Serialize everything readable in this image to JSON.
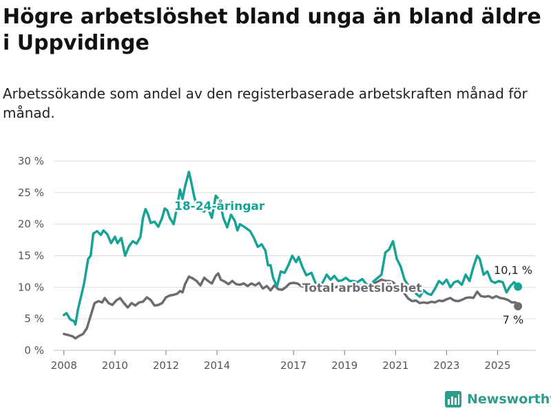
{
  "title": "Högre arbetslöshet bland unga än bland äldre i Uppvidinge",
  "subtitle": "Arbetssökande som andel av den registerbaserade arbetskraften månad för månad.",
  "brand": {
    "name": "Newsworthy"
  },
  "colors": {
    "young": "#16a294",
    "total": "#6e6a72",
    "grid": "#dedede",
    "axis": "#555555"
  },
  "chart_data": {
    "type": "line",
    "x_ticks": [
      "2008",
      "2010",
      "2012",
      "2014",
      "2017",
      "2019",
      "2021",
      "2023",
      "2025"
    ],
    "y_ticks": [
      "0 %",
      "5 %",
      "10 %",
      "15 %",
      "20 %",
      "25 %",
      "30 %"
    ],
    "ylim": [
      0,
      30
    ],
    "xlim": [
      2007.6,
      2026.5
    ],
    "grid": true,
    "series": [
      {
        "name": "18-24-åringar",
        "color": "#16a294",
        "end_label": "10,1 %",
        "points": [
          [
            2008.0,
            5.6
          ],
          [
            2008.1,
            5.9
          ],
          [
            2008.25,
            4.9
          ],
          [
            2008.4,
            4.6
          ],
          [
            2008.45,
            4.1
          ],
          [
            2008.55,
            6.5
          ],
          [
            2008.7,
            9.0
          ],
          [
            2008.8,
            10.8
          ],
          [
            2008.95,
            14.5
          ],
          [
            2009.05,
            15.0
          ],
          [
            2009.15,
            18.5
          ],
          [
            2009.3,
            18.9
          ],
          [
            2009.45,
            18.3
          ],
          [
            2009.55,
            19.0
          ],
          [
            2009.7,
            18.4
          ],
          [
            2009.85,
            17.0
          ],
          [
            2010.0,
            18.0
          ],
          [
            2010.1,
            17.0
          ],
          [
            2010.25,
            17.8
          ],
          [
            2010.4,
            15.0
          ],
          [
            2010.55,
            16.5
          ],
          [
            2010.7,
            17.3
          ],
          [
            2010.85,
            16.9
          ],
          [
            2011.0,
            18.0
          ],
          [
            2011.1,
            21.0
          ],
          [
            2011.2,
            22.4
          ],
          [
            2011.3,
            21.5
          ],
          [
            2011.4,
            20.2
          ],
          [
            2011.55,
            20.4
          ],
          [
            2011.7,
            19.6
          ],
          [
            2011.85,
            21.0
          ],
          [
            2011.95,
            22.5
          ],
          [
            2012.05,
            22.2
          ],
          [
            2012.15,
            21.0
          ],
          [
            2012.3,
            20.0
          ],
          [
            2012.45,
            23.0
          ],
          [
            2012.55,
            25.5
          ],
          [
            2012.65,
            24.0
          ],
          [
            2012.75,
            26.0
          ],
          [
            2012.9,
            28.3
          ],
          [
            2013.0,
            26.5
          ],
          [
            2013.1,
            24.5
          ],
          [
            2013.2,
            23.0
          ],
          [
            2013.35,
            22.2
          ],
          [
            2013.5,
            22.0
          ],
          [
            2013.6,
            23.5
          ],
          [
            2013.7,
            22.0
          ],
          [
            2013.8,
            21.0
          ],
          [
            2013.95,
            24.5
          ],
          [
            2014.1,
            23.8
          ],
          [
            2014.25,
            21.0
          ],
          [
            2014.4,
            19.5
          ],
          [
            2014.55,
            21.5
          ],
          [
            2014.7,
            20.5
          ],
          [
            2014.8,
            19.0
          ],
          [
            2014.9,
            20.0
          ],
          [
            2015.1,
            19.5
          ],
          [
            2015.3,
            18.9
          ],
          [
            2015.45,
            17.8
          ],
          [
            2015.6,
            16.4
          ],
          [
            2015.75,
            16.8
          ],
          [
            2015.9,
            15.8
          ],
          [
            2016.0,
            13.5
          ],
          [
            2016.1,
            13.5
          ],
          [
            2016.2,
            11.5
          ],
          [
            2016.35,
            10.1
          ],
          [
            2016.5,
            12.5
          ],
          [
            2016.65,
            12.3
          ],
          [
            2016.8,
            13.5
          ],
          [
            2016.95,
            15.0
          ],
          [
            2017.1,
            14.0
          ],
          [
            2017.2,
            14.8
          ],
          [
            2017.35,
            13.2
          ],
          [
            2017.5,
            11.9
          ],
          [
            2017.7,
            12.3
          ],
          [
            2017.85,
            10.8
          ],
          [
            2018.0,
            10.1
          ],
          [
            2018.15,
            10.8
          ],
          [
            2018.3,
            12.0
          ],
          [
            2018.45,
            11.2
          ],
          [
            2018.6,
            11.8
          ],
          [
            2018.75,
            11.0
          ],
          [
            2018.9,
            11.1
          ],
          [
            2019.05,
            11.5
          ],
          [
            2019.2,
            11.0
          ],
          [
            2019.35,
            11.0
          ],
          [
            2019.5,
            10.8
          ],
          [
            2019.7,
            11.3
          ],
          [
            2019.85,
            10.5
          ],
          [
            2020.0,
            10.4
          ],
          [
            2020.15,
            11.0
          ],
          [
            2020.3,
            11.5
          ],
          [
            2020.45,
            12.0
          ],
          [
            2020.6,
            15.5
          ],
          [
            2020.75,
            16.0
          ],
          [
            2020.9,
            17.3
          ],
          [
            2021.05,
            14.5
          ],
          [
            2021.2,
            13.3
          ],
          [
            2021.35,
            11.2
          ],
          [
            2021.5,
            10.3
          ],
          [
            2021.65,
            10.1
          ],
          [
            2021.8,
            9.0
          ],
          [
            2021.95,
            8.5
          ],
          [
            2022.1,
            9.5
          ],
          [
            2022.25,
            9.0
          ],
          [
            2022.4,
            8.8
          ],
          [
            2022.55,
            9.8
          ],
          [
            2022.7,
            11.0
          ],
          [
            2022.85,
            10.5
          ],
          [
            2023.0,
            11.2
          ],
          [
            2023.15,
            10.0
          ],
          [
            2023.3,
            10.8
          ],
          [
            2023.45,
            11.0
          ],
          [
            2023.6,
            10.4
          ],
          [
            2023.75,
            12.0
          ],
          [
            2023.9,
            11.0
          ],
          [
            2024.05,
            13.2
          ],
          [
            2024.2,
            15.0
          ],
          [
            2024.3,
            14.5
          ],
          [
            2024.45,
            12.0
          ],
          [
            2024.6,
            12.5
          ],
          [
            2024.75,
            11.0
          ],
          [
            2024.9,
            10.7
          ],
          [
            2025.05,
            11.0
          ],
          [
            2025.2,
            10.8
          ],
          [
            2025.35,
            9.2
          ],
          [
            2025.5,
            10.2
          ],
          [
            2025.65,
            10.8
          ],
          [
            2025.8,
            10.1
          ]
        ]
      },
      {
        "name": "Total arbetslöshet",
        "color": "#6e6a72",
        "end_label": "7 %",
        "points": [
          [
            2008.0,
            2.6
          ],
          [
            2008.2,
            2.4
          ],
          [
            2008.35,
            2.2
          ],
          [
            2008.45,
            1.9
          ],
          [
            2008.6,
            2.3
          ],
          [
            2008.75,
            2.6
          ],
          [
            2008.9,
            3.5
          ],
          [
            2009.05,
            5.5
          ],
          [
            2009.2,
            7.5
          ],
          [
            2009.35,
            7.8
          ],
          [
            2009.5,
            7.6
          ],
          [
            2009.6,
            8.3
          ],
          [
            2009.75,
            7.5
          ],
          [
            2009.9,
            7.2
          ],
          [
            2010.05,
            7.9
          ],
          [
            2010.2,
            8.3
          ],
          [
            2010.35,
            7.5
          ],
          [
            2010.5,
            6.8
          ],
          [
            2010.65,
            7.5
          ],
          [
            2010.8,
            7.1
          ],
          [
            2010.95,
            7.6
          ],
          [
            2011.1,
            7.7
          ],
          [
            2011.25,
            8.4
          ],
          [
            2011.4,
            8.0
          ],
          [
            2011.55,
            7.1
          ],
          [
            2011.7,
            7.2
          ],
          [
            2011.85,
            7.5
          ],
          [
            2012.0,
            8.4
          ],
          [
            2012.15,
            8.7
          ],
          [
            2012.3,
            8.8
          ],
          [
            2012.45,
            9.0
          ],
          [
            2012.55,
            9.4
          ],
          [
            2012.65,
            9.2
          ],
          [
            2012.75,
            10.5
          ],
          [
            2012.9,
            11.7
          ],
          [
            2013.05,
            11.4
          ],
          [
            2013.2,
            11.0
          ],
          [
            2013.35,
            10.3
          ],
          [
            2013.5,
            11.5
          ],
          [
            2013.65,
            11.0
          ],
          [
            2013.8,
            10.6
          ],
          [
            2013.95,
            11.8
          ],
          [
            2014.05,
            12.2
          ],
          [
            2014.15,
            11.2
          ],
          [
            2014.3,
            10.9
          ],
          [
            2014.45,
            10.5
          ],
          [
            2014.6,
            11.0
          ],
          [
            2014.75,
            10.5
          ],
          [
            2014.9,
            10.4
          ],
          [
            2015.05,
            10.6
          ],
          [
            2015.2,
            10.2
          ],
          [
            2015.35,
            10.6
          ],
          [
            2015.5,
            10.3
          ],
          [
            2015.65,
            10.7
          ],
          [
            2015.8,
            9.8
          ],
          [
            2015.95,
            10.2
          ],
          [
            2016.1,
            9.5
          ],
          [
            2016.25,
            10.3
          ],
          [
            2016.4,
            9.7
          ],
          [
            2016.55,
            9.6
          ],
          [
            2016.7,
            10.0
          ],
          [
            2016.85,
            10.6
          ],
          [
            2017.0,
            10.7
          ],
          [
            2017.15,
            10.6
          ],
          [
            2017.3,
            10.2
          ],
          [
            2017.45,
            10.0
          ],
          [
            2017.6,
            10.1
          ],
          [
            2017.75,
            9.9
          ],
          [
            2017.9,
            9.7
          ],
          [
            2018.05,
            9.9
          ],
          [
            2018.2,
            10.2
          ],
          [
            2018.35,
            10.0
          ],
          [
            2018.5,
            9.8
          ],
          [
            2018.65,
            10.0
          ],
          [
            2018.8,
            10.2
          ],
          [
            2018.95,
            10.1
          ],
          [
            2019.1,
            10.3
          ],
          [
            2019.25,
            10.2
          ],
          [
            2019.4,
            10.1
          ],
          [
            2019.55,
            10.3
          ],
          [
            2019.7,
            10.2
          ],
          [
            2019.85,
            10.5
          ],
          [
            2020.0,
            10.4
          ],
          [
            2020.15,
            10.6
          ],
          [
            2020.3,
            10.9
          ],
          [
            2020.45,
            11.2
          ],
          [
            2020.6,
            11.0
          ],
          [
            2020.75,
            11.0
          ],
          [
            2020.9,
            10.8
          ],
          [
            2021.05,
            10.2
          ],
          [
            2021.2,
            9.8
          ],
          [
            2021.35,
            9.0
          ],
          [
            2021.5,
            8.2
          ],
          [
            2021.65,
            7.8
          ],
          [
            2021.8,
            7.9
          ],
          [
            2021.95,
            7.5
          ],
          [
            2022.1,
            7.6
          ],
          [
            2022.25,
            7.5
          ],
          [
            2022.4,
            7.7
          ],
          [
            2022.55,
            7.6
          ],
          [
            2022.7,
            7.9
          ],
          [
            2022.85,
            7.8
          ],
          [
            2023.0,
            8.1
          ],
          [
            2023.15,
            8.3
          ],
          [
            2023.3,
            7.9
          ],
          [
            2023.45,
            7.8
          ],
          [
            2023.6,
            8.0
          ],
          [
            2023.75,
            8.3
          ],
          [
            2023.9,
            8.4
          ],
          [
            2024.05,
            8.3
          ],
          [
            2024.2,
            9.3
          ],
          [
            2024.35,
            8.6
          ],
          [
            2024.5,
            8.5
          ],
          [
            2024.65,
            8.6
          ],
          [
            2024.8,
            8.3
          ],
          [
            2024.95,
            8.6
          ],
          [
            2025.1,
            8.3
          ],
          [
            2025.25,
            8.2
          ],
          [
            2025.4,
            8.0
          ],
          [
            2025.55,
            7.6
          ],
          [
            2025.7,
            7.6
          ],
          [
            2025.8,
            7.0
          ]
        ]
      }
    ]
  }
}
